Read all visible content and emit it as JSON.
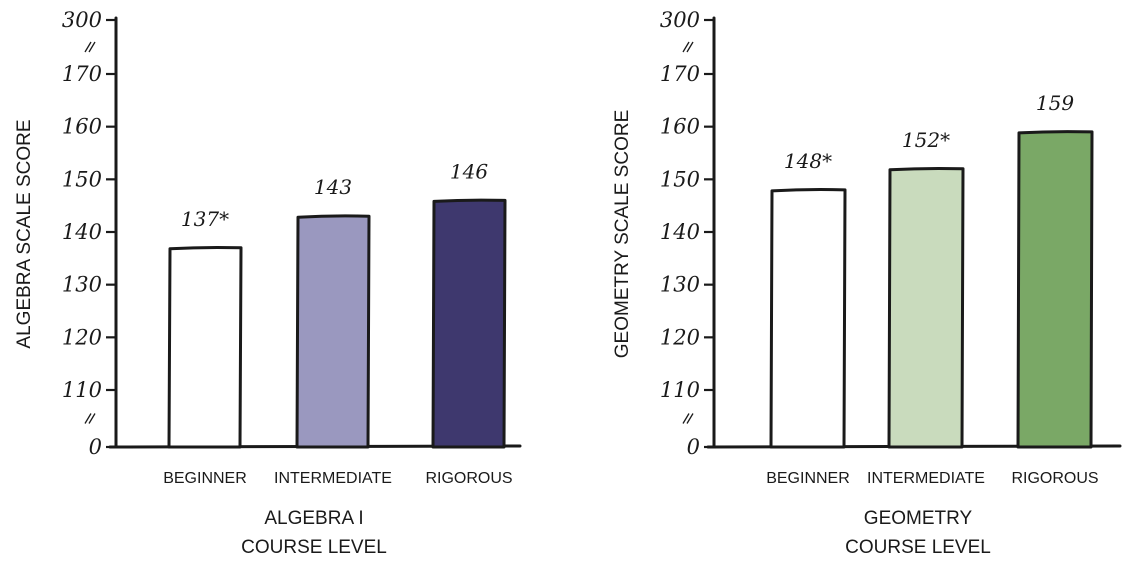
{
  "chart_data": [
    {
      "type": "bar",
      "categories": [
        "BEGINNER",
        "INTERMEDIATE",
        "RIGOROUS"
      ],
      "values": [
        137,
        143,
        146
      ],
      "data_labels": [
        "137*",
        "143",
        "146"
      ],
      "colors": [
        "#ffffff",
        "#9a98bf",
        "#3e386e"
      ],
      "ylabel": "ALGEBRA SCALE SCORE",
      "xlabel_lines": [
        "ALGEBRA I",
        "COURSE LEVEL"
      ],
      "ylim": [
        110,
        170
      ],
      "yticks": [
        "0",
        "110",
        "120",
        "130",
        "140",
        "150",
        "160",
        "170",
        "300"
      ],
      "axis_breaks": "between 0 and 110, and between 170 and 300"
    },
    {
      "type": "bar",
      "categories": [
        "BEGINNER",
        "INTERMEDIATE",
        "RIGOROUS"
      ],
      "values": [
        148,
        152,
        159
      ],
      "data_labels": [
        "148*",
        "152*",
        "159"
      ],
      "colors": [
        "#ffffff",
        "#c9dbbd",
        "#7aa866"
      ],
      "ylabel": "GEOMETRY SCALE SCORE",
      "xlabel_lines": [
        "GEOMETRY",
        "COURSE LEVEL"
      ],
      "ylim": [
        110,
        170
      ],
      "yticks": [
        "0",
        "110",
        "120",
        "130",
        "140",
        "150",
        "160",
        "170",
        "300"
      ],
      "axis_breaks": "between 0 and 110, and between 170 and 300"
    }
  ]
}
